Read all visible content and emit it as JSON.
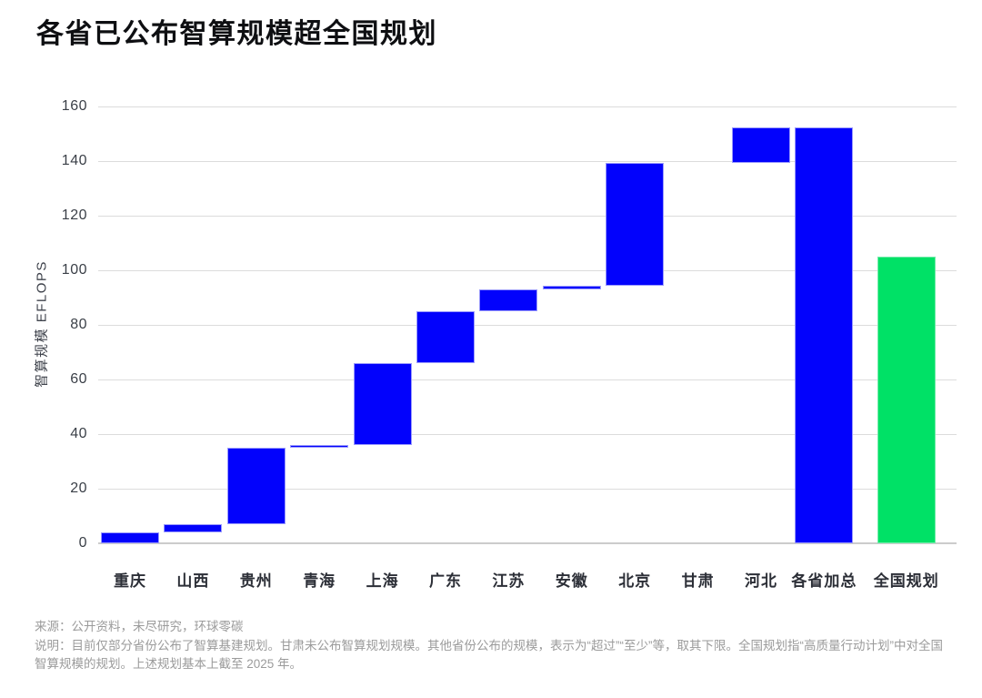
{
  "page_title": "各省已公布智算规模超全国规划",
  "chart_data": {
    "type": "bar",
    "subtype": "waterfall",
    "title": "各省已公布智算规模超全国规划",
    "xlabel": "",
    "ylabel": "智算规模 EFLOPS",
    "ylim": [
      0,
      160
    ],
    "yticks": [
      0,
      20,
      40,
      60,
      80,
      100,
      120,
      140,
      160
    ],
    "grid": "horizontal",
    "legend": "none",
    "unit": "EFLOPS",
    "bar_colors": {
      "provincial": "#0202fc",
      "national": "#00e166"
    },
    "categories": [
      {
        "label": "重庆",
        "start": 0,
        "end": 4,
        "value": 4,
        "color": "provincial"
      },
      {
        "label": "山西",
        "start": 4,
        "end": 7,
        "value": 3,
        "color": "provincial"
      },
      {
        "label": "贵州",
        "start": 7,
        "end": 35,
        "value": 28,
        "color": "provincial"
      },
      {
        "label": "青海",
        "start": 35,
        "end": 36,
        "value": 1,
        "color": "provincial"
      },
      {
        "label": "上海",
        "start": 36,
        "end": 66,
        "value": 30,
        "color": "provincial"
      },
      {
        "label": "广东",
        "start": 66,
        "end": 85,
        "value": 19,
        "color": "provincial"
      },
      {
        "label": "江苏",
        "start": 85,
        "end": 93,
        "value": 8,
        "color": "provincial"
      },
      {
        "label": "安徽",
        "start": 93,
        "end": 94.5,
        "value": 1.5,
        "color": "provincial"
      },
      {
        "label": "北京",
        "start": 94.5,
        "end": 139.5,
        "value": 45,
        "color": "provincial"
      },
      {
        "label": "甘肃",
        "start": null,
        "end": null,
        "value": null,
        "color": "provincial"
      },
      {
        "label": "河北",
        "start": 139.5,
        "end": 152.5,
        "value": 13,
        "color": "provincial"
      },
      {
        "label": "各省加总",
        "start": 0,
        "end": 152.5,
        "value": 152.5,
        "color": "provincial"
      },
      {
        "label": "全国规划",
        "start": 0,
        "end": 105,
        "value": 105,
        "color": "national"
      }
    ]
  },
  "footer": {
    "source": "来源：公开资料，未尽研究，环球零碳",
    "note": "说明：目前仅部分省份公布了智算基建规划。甘肃未公布智算规划规模。其他省份公布的规模，表示为“超过”“至少”等，取其下限。全国规划指“高质量行动计划”中对全国智算规模的规划。上述规划基本上截至 2025 年。"
  }
}
